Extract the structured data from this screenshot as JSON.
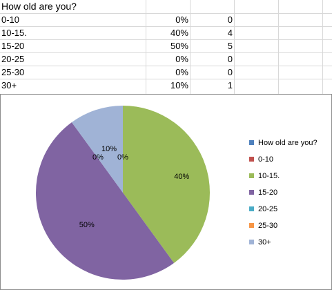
{
  "sheet": {
    "rows": [
      {
        "label": "How old are you?",
        "pct": "",
        "count": ""
      },
      {
        "label": "0-10",
        "pct": "0%",
        "count": "0"
      },
      {
        "label": "10-15.",
        "pct": "40%",
        "count": "4"
      },
      {
        "label": "15-20",
        "pct": "50%",
        "count": "5"
      },
      {
        "label": "20-25",
        "pct": "0%",
        "count": "0"
      },
      {
        "label": "25-30",
        "pct": "0%",
        "count": "0"
      },
      {
        "label": "30+",
        "pct": "10%",
        "count": "1"
      }
    ]
  },
  "chart_data": {
    "type": "pie",
    "categories": [
      "How old are you?",
      "0-10",
      "10-15.",
      "15-20",
      "20-25",
      "25-30",
      "30+"
    ],
    "values": [
      0,
      0,
      40,
      50,
      0,
      0,
      10
    ],
    "data_labels": [
      "",
      "0%",
      "40%",
      "50%",
      "0%",
      "",
      "10%"
    ],
    "colors": [
      "#4f81bd",
      "#c0504d",
      "#9bbb59",
      "#8064a2",
      "#4bacc6",
      "#f79646",
      "#a0b3d6"
    ],
    "legend_position": "right"
  }
}
